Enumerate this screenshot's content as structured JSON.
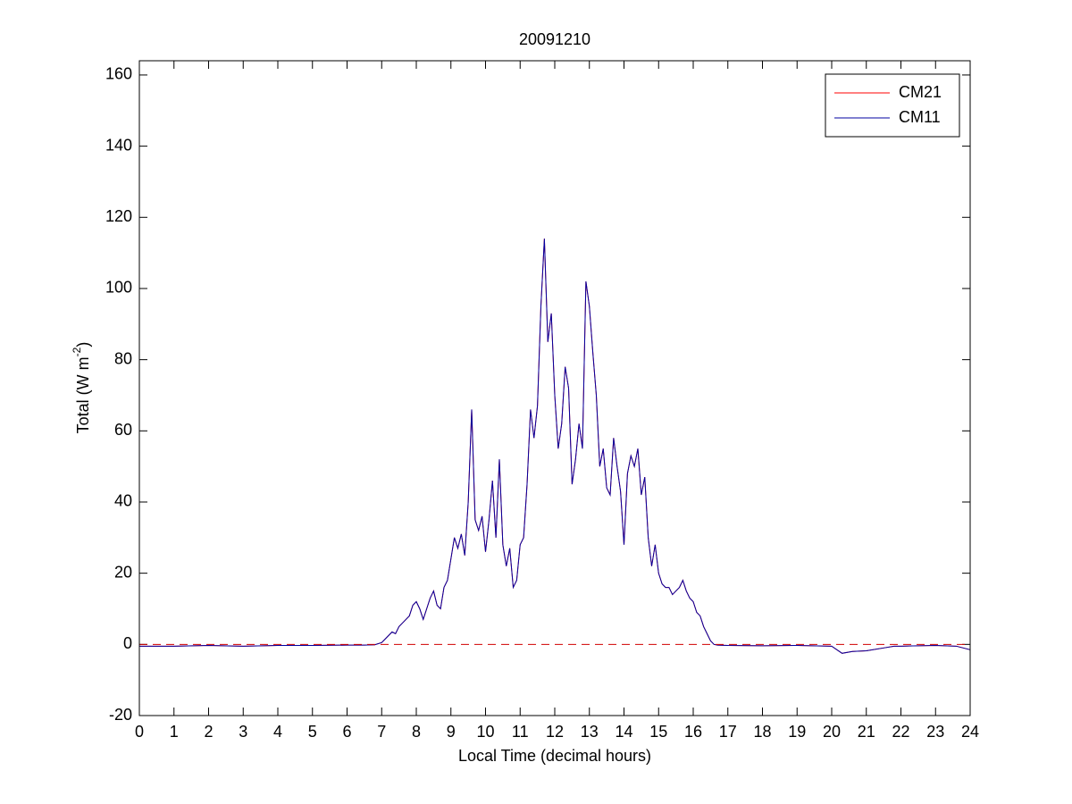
{
  "chart_data": {
    "type": "line",
    "title": "20091210",
    "xlabel": "Local Time (decimal hours)",
    "ylabel": "Total (W m",
    "ylabel_superscript": "-2",
    "ylabel_suffix": ")",
    "xlim": [
      0,
      24
    ],
    "ylim": [
      -20,
      164
    ],
    "xticks": [
      0,
      1,
      2,
      3,
      4,
      5,
      6,
      7,
      8,
      9,
      10,
      11,
      12,
      13,
      14,
      15,
      16,
      17,
      18,
      19,
      20,
      21,
      22,
      23,
      24
    ],
    "yticks": [
      -20,
      0,
      20,
      40,
      60,
      80,
      100,
      120,
      140,
      160
    ],
    "legend": "top-right",
    "reference_line": {
      "value": 0,
      "color": "#d00000",
      "style": "dashed"
    },
    "x": [
      0,
      1,
      2,
      3,
      4,
      5,
      6,
      6.5,
      6.8,
      7.0,
      7.1,
      7.2,
      7.3,
      7.4,
      7.5,
      7.6,
      7.7,
      7.8,
      7.9,
      8.0,
      8.1,
      8.2,
      8.3,
      8.4,
      8.5,
      8.6,
      8.7,
      8.8,
      8.9,
      9.0,
      9.1,
      9.2,
      9.3,
      9.4,
      9.5,
      9.6,
      9.7,
      9.8,
      9.9,
      10.0,
      10.1,
      10.2,
      10.3,
      10.4,
      10.5,
      10.6,
      10.7,
      10.8,
      10.9,
      11.0,
      11.1,
      11.2,
      11.3,
      11.4,
      11.5,
      11.6,
      11.7,
      11.8,
      11.9,
      12.0,
      12.1,
      12.2,
      12.3,
      12.4,
      12.5,
      12.6,
      12.7,
      12.8,
      12.9,
      13.0,
      13.1,
      13.2,
      13.3,
      13.4,
      13.5,
      13.6,
      13.7,
      13.8,
      13.9,
      14.0,
      14.1,
      14.2,
      14.3,
      14.4,
      14.5,
      14.6,
      14.7,
      14.8,
      14.9,
      15.0,
      15.1,
      15.2,
      15.3,
      15.4,
      15.5,
      15.6,
      15.7,
      15.8,
      15.9,
      16.0,
      16.1,
      16.2,
      16.3,
      16.4,
      16.5,
      16.6,
      16.7,
      17.0,
      18,
      19,
      20,
      20.3,
      20.6,
      21,
      21.5,
      21.8,
      22,
      23,
      23.6,
      24
    ],
    "series": [
      {
        "name": "CM21",
        "color": "#ff0000",
        "values": [
          -0.5,
          -0.5,
          -0.3,
          -0.5,
          -0.3,
          -0.3,
          -0.2,
          -0.2,
          -0.1,
          0.5,
          1.5,
          2.5,
          3.5,
          3,
          5,
          6,
          7,
          8,
          11,
          12,
          10,
          7,
          10,
          13,
          15,
          11,
          10,
          16,
          18,
          24,
          30,
          27,
          31,
          25,
          40,
          66,
          35,
          32,
          36,
          26,
          35,
          46,
          30,
          52,
          28,
          22,
          27,
          16,
          18,
          28,
          30,
          45,
          66,
          58,
          67,
          95,
          114,
          85,
          93,
          70,
          55,
          62,
          78,
          72,
          45,
          52,
          62,
          55,
          102,
          95,
          82,
          70,
          50,
          55,
          44,
          42,
          58,
          50,
          43,
          28,
          48,
          53,
          50,
          55,
          42,
          47,
          30,
          22,
          28,
          20,
          17,
          16,
          16,
          14,
          15,
          16,
          18,
          15,
          13,
          12,
          9,
          8,
          5,
          3,
          1,
          0,
          -0.2,
          -0.3,
          -0.4,
          -0.3,
          -0.5,
          -2.5,
          -2,
          -1.8,
          -1,
          -0.5,
          -0.5,
          -0.3,
          -0.5,
          -1.5
        ]
      },
      {
        "name": "CM11",
        "color": "#0000a0",
        "values": [
          -0.5,
          -0.5,
          -0.3,
          -0.5,
          -0.3,
          -0.3,
          -0.2,
          -0.2,
          -0.1,
          0.5,
          1.5,
          2.5,
          3.5,
          3,
          5,
          6,
          7,
          8,
          11,
          12,
          10,
          7,
          10,
          13,
          15,
          11,
          10,
          16,
          18,
          24,
          30,
          27,
          31,
          25,
          40,
          66,
          35,
          32,
          36,
          26,
          35,
          46,
          30,
          52,
          28,
          22,
          27,
          16,
          18,
          28,
          30,
          45,
          66,
          58,
          67,
          95,
          114,
          85,
          93,
          70,
          55,
          62,
          78,
          72,
          45,
          52,
          62,
          55,
          102,
          95,
          82,
          70,
          50,
          55,
          44,
          42,
          58,
          50,
          43,
          28,
          48,
          53,
          50,
          55,
          42,
          47,
          30,
          22,
          28,
          20,
          17,
          16,
          16,
          14,
          15,
          16,
          18,
          15,
          13,
          12,
          9,
          8,
          5,
          3,
          1,
          0,
          -0.2,
          -0.3,
          -0.4,
          -0.3,
          -0.5,
          -2.5,
          -2,
          -1.8,
          -1,
          -0.5,
          -0.5,
          -0.3,
          -0.5,
          -1.5
        ]
      }
    ]
  }
}
